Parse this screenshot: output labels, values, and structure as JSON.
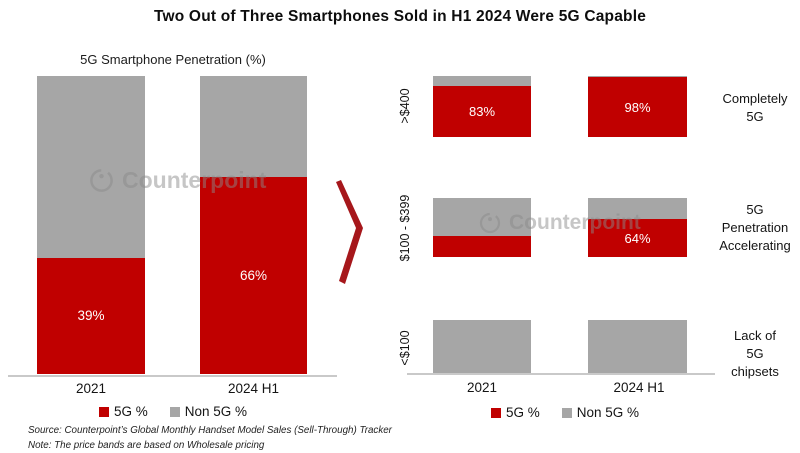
{
  "title": "Two Out of Three Smartphones Sold in H1 2024 Were 5G Capable",
  "colors": {
    "red_5g": "#C00000",
    "gray_non5g": "#A6A6A6",
    "axis": "#C9C9C9",
    "chevron": "#A6171B"
  },
  "watermark": {
    "text": "Counterpoint",
    "icon": "counterpoint-logo-icon"
  },
  "source_note": {
    "line1": "Source: Counterpoint’s Global Monthly Handset Model Sales (Sell-Through) Tracker",
    "line2": "Note: The price bands are based on Wholesale pricing"
  },
  "chart_data": [
    {
      "type": "bar",
      "stacked": true,
      "unit": "%",
      "title": "5G Smartphone Penetration (%)",
      "categories": [
        "2021",
        "2024 H1"
      ],
      "series": [
        {
          "name": "5G %",
          "color": "#C00000",
          "values": [
            39,
            66
          ]
        },
        {
          "name": "Non 5G %",
          "color": "#A6A6A6",
          "values": [
            61,
            34
          ]
        }
      ],
      "value_labels": [
        "39%",
        "66%"
      ],
      "ylim": [
        0,
        100
      ],
      "grid": false,
      "legend_position": "bottom"
    },
    {
      "type": "bar",
      "stacked": true,
      "unit": "%",
      "categories": [
        "2021",
        "2024 H1"
      ],
      "legend": [
        "5G %",
        "Non 5G %"
      ],
      "legend_position": "bottom",
      "grid": false,
      "ylim": [
        0,
        100
      ],
      "rows": [
        {
          "band": ">$400",
          "values_5g": [
            83,
            98
          ],
          "values_non5g": [
            17,
            2
          ],
          "labels": [
            "83%",
            "98%"
          ],
          "annotation": "Completely\n5G"
        },
        {
          "band": "$100 - $399",
          "values_5g": [
            35,
            64
          ],
          "values_non5g": [
            65,
            36
          ],
          "labels": [
            "",
            "64%"
          ],
          "annotation": "5G\nPenetration\nAccelerating"
        },
        {
          "band": "<$100",
          "values_5g": [
            0,
            0
          ],
          "values_non5g": [
            100,
            100
          ],
          "labels": [
            "",
            ""
          ],
          "annotation": "Lack of\n5G\nchipsets"
        }
      ]
    }
  ]
}
